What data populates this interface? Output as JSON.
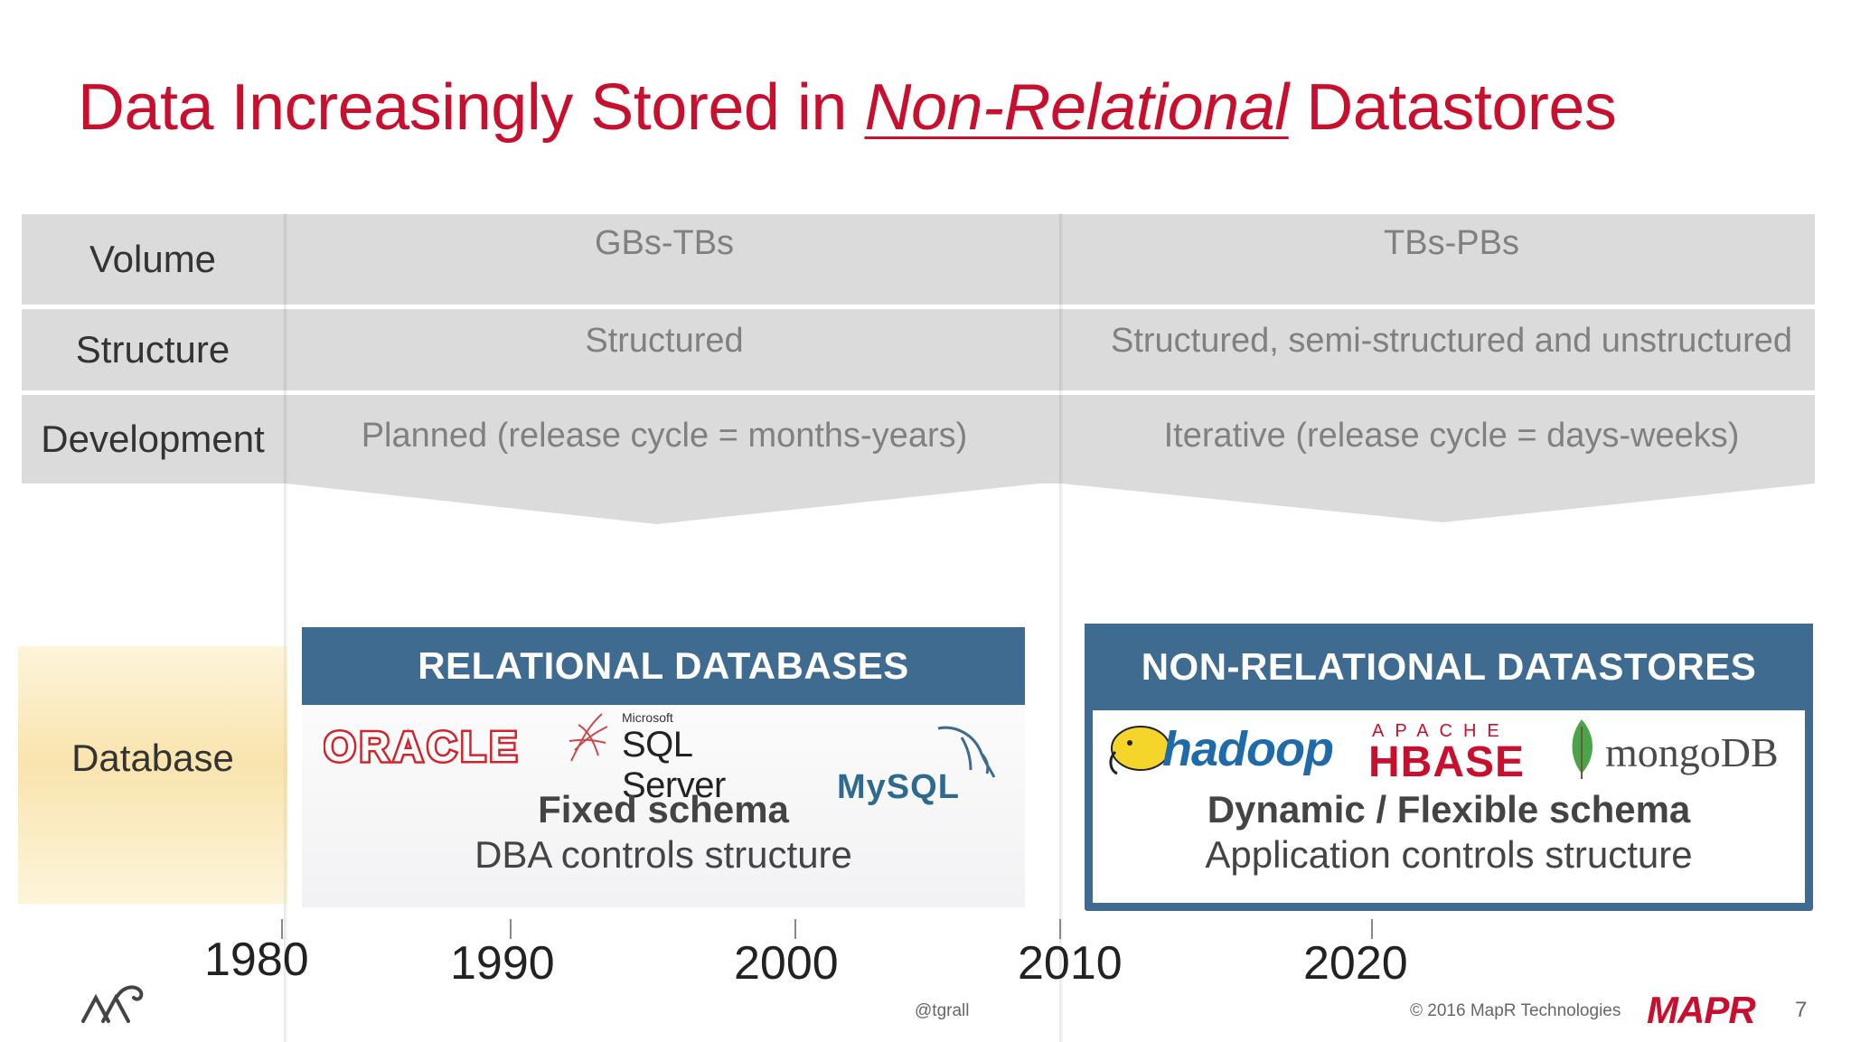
{
  "title": {
    "prefix": "Data Increasingly Stored in ",
    "emphasis": "Non-Relational",
    "suffix": " Datastores"
  },
  "rows": [
    {
      "label": "Volume",
      "era1": "GBs-TBs",
      "era2": "TBs-PBs"
    },
    {
      "label": "Structure",
      "era1": "Structured",
      "era2": "Structured, semi-structured and unstructured"
    },
    {
      "label": "Development",
      "era1": "Planned (release cycle = months-years)",
      "era2": "Iterative (release cycle = days-weeks)"
    }
  ],
  "database_label": "Database",
  "relational": {
    "heading": "RELATIONAL DATABASES",
    "logos": {
      "oracle": "ORACLE",
      "sqlserver_small": "Microsoft",
      "sqlserver": "SQL Server",
      "mysql": "MySQL"
    },
    "schema": "Fixed schema",
    "control": "DBA controls structure"
  },
  "nonrelational": {
    "heading": "NON-RELATIONAL DATASTORES",
    "logos": {
      "hadoop": "hadoop",
      "hbase_small": "APACHE",
      "hbase": "HBASE",
      "mongodb": "mongoDB"
    },
    "schema": "Dynamic / Flexible schema",
    "control": "Application controls structure"
  },
  "timeline": [
    "1980",
    "1990",
    "2000",
    "2010",
    "2020"
  ],
  "footer": {
    "handle": "@tgrall",
    "copyright": "© 2016 MapR Technologies",
    "brand": "MAPR",
    "page": "7"
  },
  "colors": {
    "title_red": "#c8102e",
    "header_blue": "#3e6b8f",
    "row_gray": "#dbdbdc"
  }
}
